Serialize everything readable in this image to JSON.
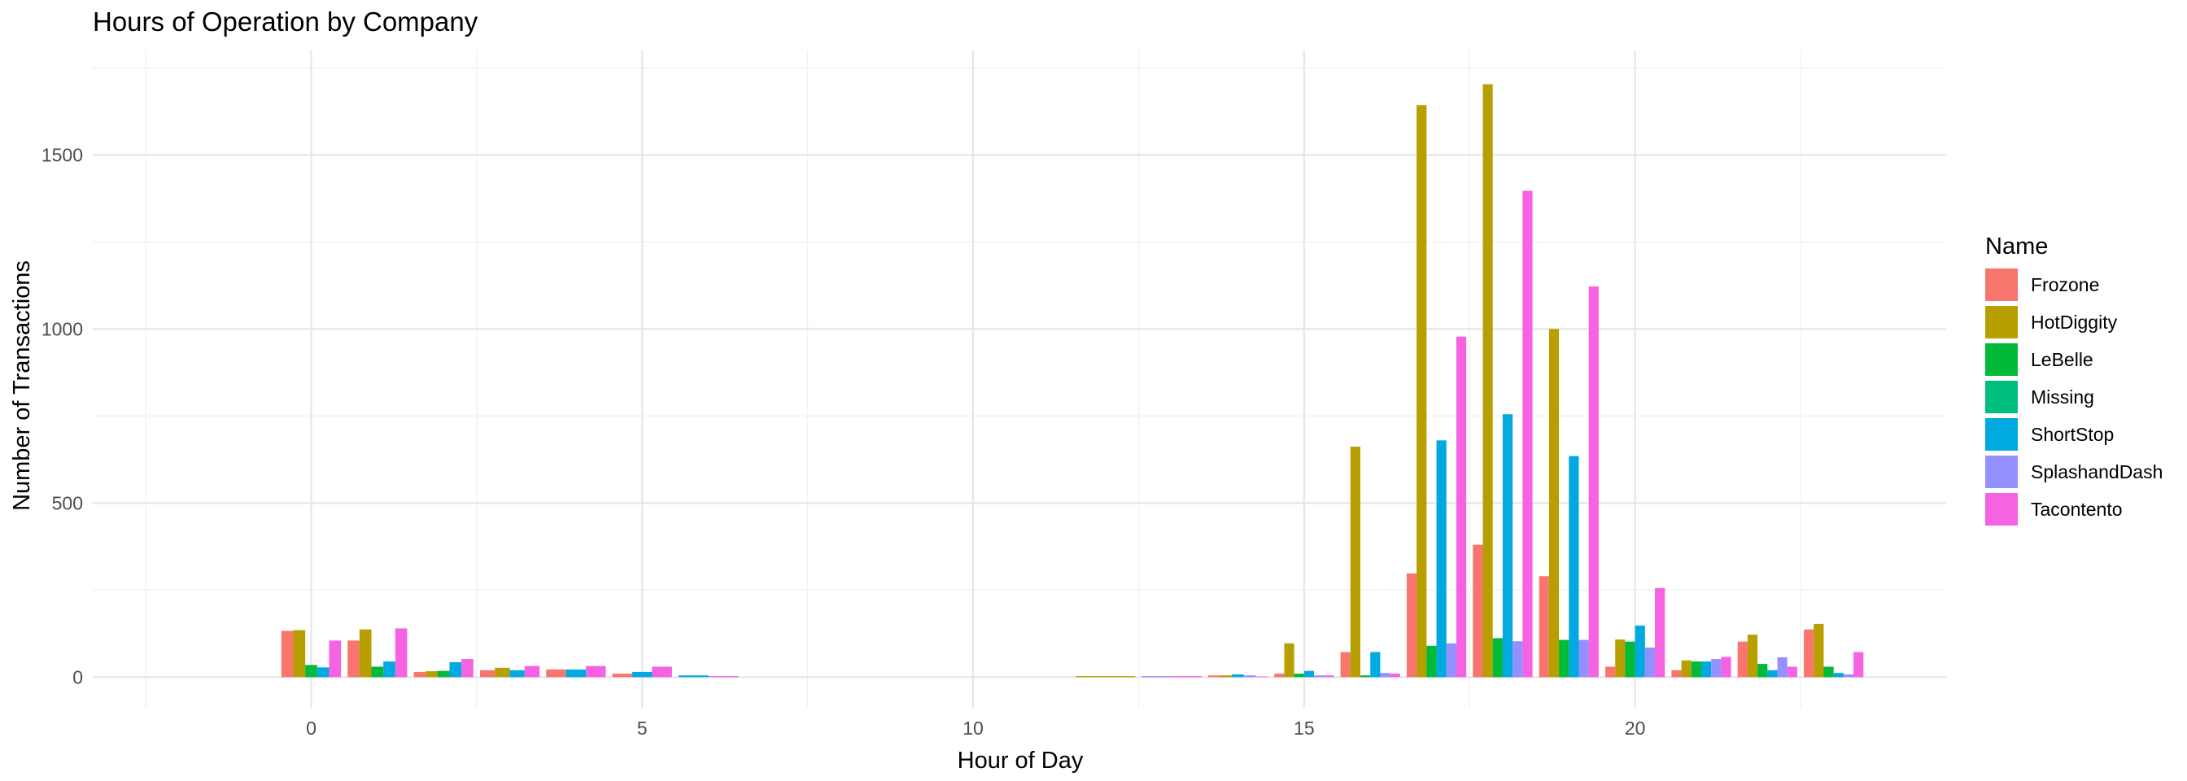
{
  "chart_data": {
    "type": "bar",
    "title": "Hours of Operation by Company",
    "xlabel": "Hour of Day",
    "ylabel": "Number of Transactions",
    "xlim": [
      -3.3,
      24.7
    ],
    "ylim": [
      -88,
      1800
    ],
    "x_ticks": [
      0,
      5,
      10,
      15,
      20
    ],
    "y_ticks": [
      0,
      500,
      1000,
      1500
    ],
    "grid": true,
    "legend_title": "Name",
    "legend_position": "right",
    "hours": [
      0,
      1,
      2,
      3,
      4,
      5,
      6,
      7,
      8,
      9,
      10,
      11,
      12,
      13,
      14,
      15,
      16,
      17,
      18,
      19,
      20,
      21,
      22,
      23
    ],
    "series": [
      {
        "name": "Frozone",
        "color": "#F8766D",
        "values": [
          133,
          105,
          15,
          20,
          22,
          10,
          0,
          0,
          0,
          0,
          0,
          0,
          0,
          0,
          5,
          10,
          72,
          298,
          380,
          290,
          30,
          20,
          102,
          137
        ]
      },
      {
        "name": "HotDiggity",
        "color": "#B79F00",
        "values": [
          135,
          137,
          17,
          27,
          0,
          0,
          0,
          0,
          0,
          0,
          0,
          0,
          3,
          0,
          5,
          97,
          662,
          1643,
          1703,
          1000,
          108,
          48,
          122,
          153
        ]
      },
      {
        "name": "LeBelle",
        "color": "#00BA38",
        "values": [
          35,
          30,
          18,
          0,
          0,
          0,
          0,
          0,
          0,
          0,
          0,
          0,
          0,
          0,
          0,
          10,
          5,
          90,
          112,
          107,
          102,
          45,
          38,
          30
        ]
      },
      {
        "name": "Missing",
        "color": "#00BF7D",
        "values": [
          0,
          0,
          0,
          0,
          0,
          0,
          0,
          0,
          0,
          0,
          0,
          0,
          0,
          0,
          0,
          0,
          0,
          0,
          0,
          0,
          0,
          0,
          0,
          0
        ]
      },
      {
        "name": "ShortStop",
        "color": "#00A9E0",
        "values": [
          28,
          45,
          43,
          20,
          22,
          15,
          5,
          0,
          0,
          0,
          0,
          0,
          0,
          0,
          8,
          18,
          72,
          680,
          755,
          635,
          148,
          45,
          20,
          12
        ]
      },
      {
        "name": "SplashandDash",
        "color": "#9590FF",
        "values": [
          0,
          0,
          0,
          0,
          0,
          0,
          0,
          0,
          0,
          0,
          0,
          0,
          0,
          3,
          5,
          5,
          12,
          97,
          103,
          107,
          85,
          52,
          57,
          8
        ]
      },
      {
        "name": "Tacontento",
        "color": "#F563E3",
        "values": [
          105,
          140,
          52,
          32,
          32,
          30,
          3,
          0,
          0,
          0,
          0,
          0,
          0,
          3,
          2,
          5,
          10,
          978,
          1397,
          1122,
          256,
          58,
          30,
          72
        ]
      }
    ]
  }
}
